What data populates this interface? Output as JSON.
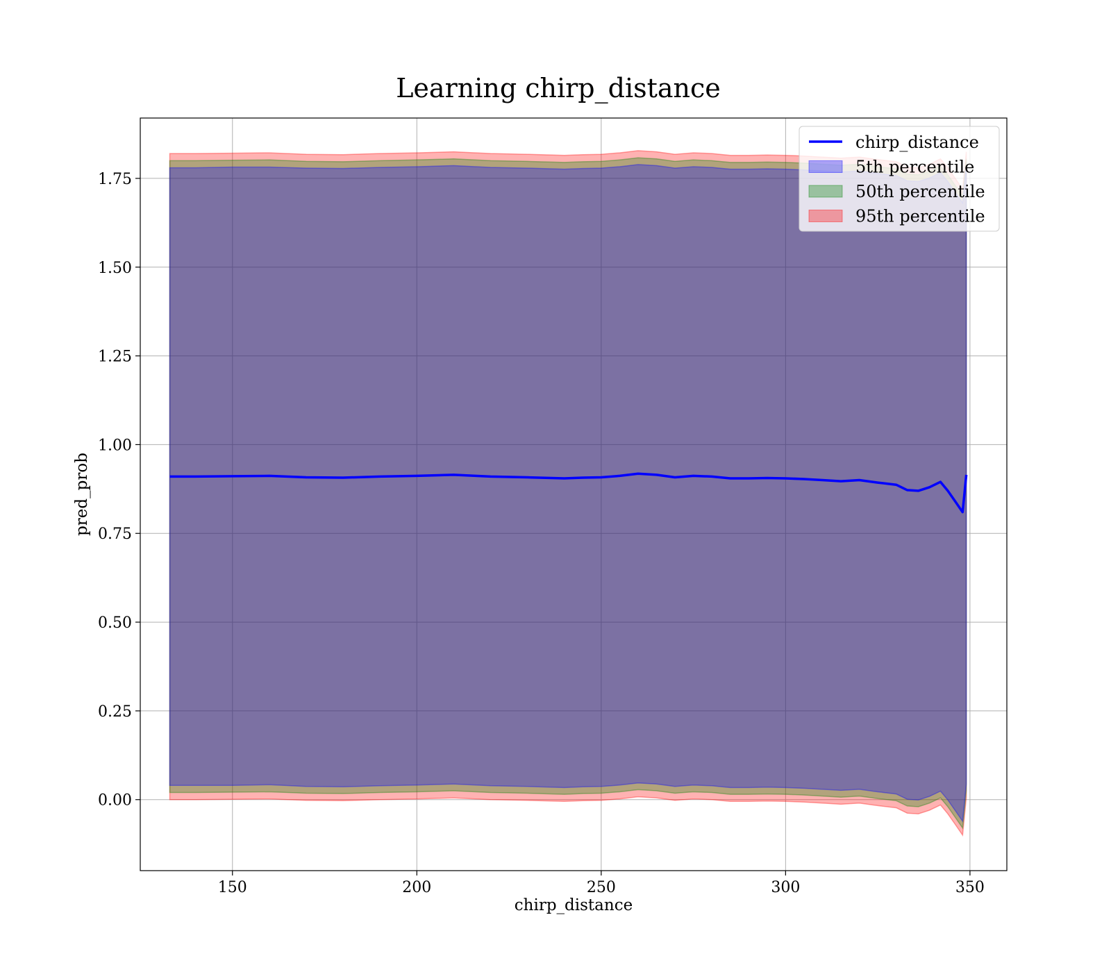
{
  "chart_data": {
    "type": "area",
    "title": "Learning chirp_distance",
    "xlabel": "chirp_distance",
    "ylabel": "pred_prob",
    "xlim": [
      125,
      360
    ],
    "ylim": [
      -0.2,
      1.92
    ],
    "xticks": [
      150,
      200,
      250,
      300,
      350
    ],
    "yticks": [
      0.0,
      0.25,
      0.5,
      0.75,
      1.0,
      1.25,
      1.5,
      1.75
    ],
    "grid": true,
    "legend_position": "top-right",
    "x": [
      133,
      140,
      150,
      160,
      170,
      180,
      190,
      200,
      210,
      220,
      230,
      240,
      245,
      250,
      255,
      260,
      265,
      270,
      275,
      280,
      285,
      290,
      295,
      300,
      305,
      310,
      315,
      320,
      325,
      330,
      333,
      336,
      339,
      342,
      344,
      346,
      348,
      349
    ],
    "series": [
      {
        "name": "chirp_distance",
        "kind": "line",
        "color": "#0000ff",
        "values": [
          0.91,
          0.91,
          0.911,
          0.912,
          0.908,
          0.907,
          0.91,
          0.912,
          0.915,
          0.91,
          0.908,
          0.905,
          0.907,
          0.908,
          0.912,
          0.918,
          0.915,
          0.908,
          0.912,
          0.91,
          0.905,
          0.905,
          0.906,
          0.905,
          0.903,
          0.9,
          0.897,
          0.9,
          0.893,
          0.887,
          0.872,
          0.87,
          0.88,
          0.895,
          0.87,
          0.84,
          0.81,
          0.915
        ]
      },
      {
        "name": "5th percentile",
        "kind": "band",
        "color": "#0000ff",
        "upper": [
          1.78,
          1.78,
          1.782,
          1.782,
          1.779,
          1.778,
          1.781,
          1.783,
          1.786,
          1.781,
          1.779,
          1.776,
          1.778,
          1.779,
          1.783,
          1.789,
          1.786,
          1.779,
          1.783,
          1.781,
          1.776,
          1.776,
          1.777,
          1.776,
          1.774,
          1.771,
          1.768,
          1.771,
          1.764,
          1.758,
          1.743,
          1.741,
          1.751,
          1.766,
          1.741,
          1.711,
          1.681,
          1.786
        ],
        "lower": [
          0.04,
          0.04,
          0.04,
          0.042,
          0.037,
          0.036,
          0.039,
          0.041,
          0.044,
          0.039,
          0.037,
          0.034,
          0.036,
          0.037,
          0.041,
          0.047,
          0.044,
          0.037,
          0.041,
          0.039,
          0.034,
          0.034,
          0.035,
          0.034,
          0.032,
          0.029,
          0.026,
          0.029,
          0.022,
          0.016,
          0.001,
          -0.001,
          0.009,
          0.024,
          -0.001,
          -0.031,
          -0.061,
          0.044
        ]
      },
      {
        "name": "50th percentile",
        "kind": "band",
        "color": "#008000",
        "upper": [
          1.8,
          1.8,
          1.801,
          1.802,
          1.798,
          1.797,
          1.8,
          1.802,
          1.805,
          1.8,
          1.798,
          1.795,
          1.797,
          1.798,
          1.802,
          1.808,
          1.805,
          1.798,
          1.802,
          1.8,
          1.795,
          1.795,
          1.796,
          1.795,
          1.793,
          1.79,
          1.787,
          1.79,
          1.783,
          1.777,
          1.762,
          1.76,
          1.77,
          1.785,
          1.76,
          1.73,
          1.7,
          1.805
        ],
        "lower": [
          0.02,
          0.02,
          0.021,
          0.022,
          0.018,
          0.017,
          0.02,
          0.022,
          0.025,
          0.02,
          0.018,
          0.015,
          0.017,
          0.018,
          0.022,
          0.028,
          0.025,
          0.018,
          0.022,
          0.02,
          0.015,
          0.015,
          0.016,
          0.015,
          0.013,
          0.01,
          0.007,
          0.01,
          0.003,
          -0.003,
          -0.018,
          -0.02,
          -0.01,
          0.005,
          -0.02,
          -0.05,
          -0.08,
          0.025
        ]
      },
      {
        "name": "95th percentile",
        "kind": "band",
        "color": "#ff0000",
        "upper": [
          1.82,
          1.82,
          1.821,
          1.822,
          1.818,
          1.817,
          1.82,
          1.822,
          1.825,
          1.82,
          1.818,
          1.815,
          1.817,
          1.818,
          1.822,
          1.828,
          1.825,
          1.818,
          1.822,
          1.82,
          1.815,
          1.815,
          1.816,
          1.815,
          1.813,
          1.81,
          1.807,
          1.81,
          1.803,
          1.797,
          1.782,
          1.78,
          1.79,
          1.805,
          1.78,
          1.75,
          1.72,
          1.825
        ],
        "lower": [
          0.0,
          0.0,
          0.001,
          0.002,
          -0.002,
          -0.003,
          0.0,
          0.002,
          0.005,
          0.0,
          -0.002,
          -0.005,
          -0.003,
          -0.002,
          0.002,
          0.008,
          0.005,
          -0.002,
          0.002,
          0.0,
          -0.005,
          -0.005,
          -0.004,
          -0.005,
          -0.007,
          -0.01,
          -0.013,
          -0.01,
          -0.017,
          -0.023,
          -0.038,
          -0.04,
          -0.03,
          -0.015,
          -0.04,
          -0.07,
          -0.1,
          0.005
        ]
      }
    ]
  }
}
